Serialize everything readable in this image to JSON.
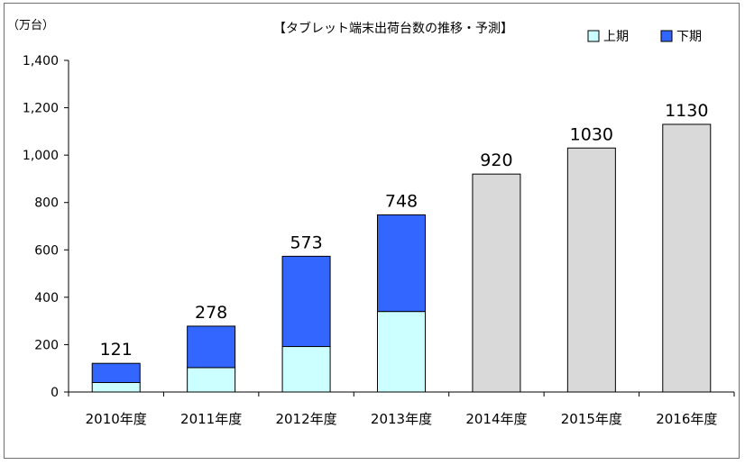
{
  "chart_data": {
    "type": "bar",
    "stacked": true,
    "title": "【タブレット端末出荷台数の推移・予測】",
    "unit_label": "（万台）",
    "categories": [
      "2010年度",
      "2011年度",
      "2012年度",
      "2013年度",
      "2014年度",
      "2015年度",
      "2016年度"
    ],
    "series": [
      {
        "name": "上期",
        "color": "#ccffff",
        "values": [
          40,
          103,
          192,
          340,
          null,
          null,
          null
        ]
      },
      {
        "name": "下期",
        "color": "#3366ff",
        "values": [
          81,
          175,
          381,
          408,
          null,
          null,
          null
        ]
      },
      {
        "color": "#d9d9d9",
        "values": [
          null,
          null,
          null,
          null,
          920,
          1030,
          1130
        ]
      }
    ],
    "totals": [
      121,
      278,
      573,
      748,
      920,
      1030,
      1130
    ],
    "total_labels": [
      "121",
      "278",
      "573",
      "748",
      "920",
      "1030",
      "1130"
    ],
    "ylim": [
      0,
      1400
    ],
    "yticks": [
      0,
      200,
      400,
      600,
      800,
      1000,
      1200,
      1400
    ],
    "ytick_labels": [
      "0",
      "200",
      "400",
      "600",
      "800",
      "1,000",
      "1,200",
      "1,400"
    ],
    "grid": false,
    "legend_position": "top-right",
    "legend": [
      {
        "label": "上期",
        "color": "#ccffff"
      },
      {
        "label": "下期",
        "color": "#3366ff"
      }
    ]
  }
}
